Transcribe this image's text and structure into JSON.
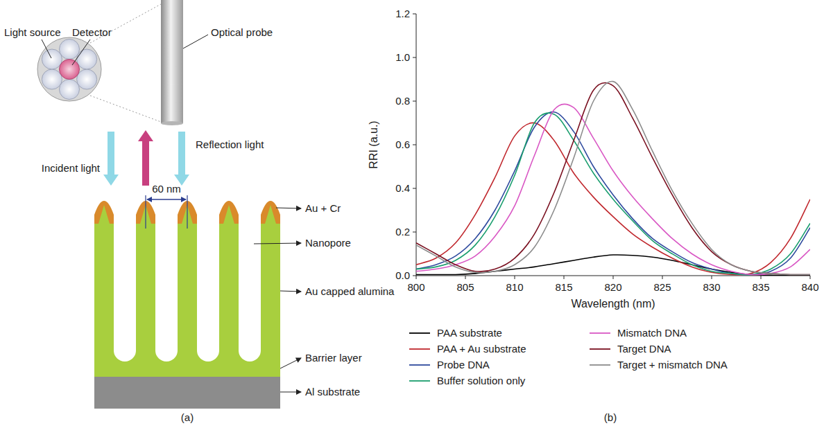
{
  "panel_labels": [
    "(a)",
    "(b)"
  ],
  "diagram": {
    "light_source": "Light source",
    "detector": "Detector",
    "optical_probe": "Optical probe",
    "reflection_light": "Reflection light",
    "incident_light": "Incident light",
    "pore_spacing": "60 nm",
    "au_cr": "Au + Cr",
    "nanopore": "Nanopore",
    "au_capped_alumina": "Au capped alumina",
    "barrier_layer": "Barrier layer",
    "al_substrate": "Al substrate"
  },
  "chart_data": {
    "type": "line",
    "xlabel": "Wavelength (nm)",
    "ylabel": "RRI (a.u.)",
    "x": [
      800,
      802,
      804,
      806,
      808,
      810,
      812,
      814,
      816,
      818,
      820,
      822,
      824,
      826,
      828,
      830,
      832,
      834,
      836,
      838,
      840
    ],
    "series": [
      {
        "name": "PAA substrate",
        "color": "#000000",
        "values": [
          0.005,
          0.005,
          0.005,
          0.01,
          0.02,
          0.03,
          0.04,
          0.055,
          0.07,
          0.085,
          0.095,
          0.093,
          0.085,
          0.07,
          0.05,
          0.03,
          0.015,
          0.005,
          0.002,
          0.002,
          0.002
        ]
      },
      {
        "name": "PAA + Au substrate",
        "color": "#c0272d",
        "values": [
          0.05,
          0.08,
          0.15,
          0.28,
          0.45,
          0.64,
          0.7,
          0.62,
          0.47,
          0.36,
          0.27,
          0.19,
          0.13,
          0.08,
          0.04,
          0.015,
          0.005,
          0.01,
          0.06,
          0.17,
          0.35
        ]
      },
      {
        "name": "Probe DNA",
        "color": "#2e4a9e",
        "values": [
          0.03,
          0.05,
          0.09,
          0.17,
          0.3,
          0.48,
          0.68,
          0.75,
          0.66,
          0.5,
          0.37,
          0.26,
          0.17,
          0.11,
          0.06,
          0.03,
          0.01,
          0.005,
          0.02,
          0.08,
          0.22
        ]
      },
      {
        "name": "Buffer solution only",
        "color": "#1a9e6e",
        "values": [
          0.03,
          0.04,
          0.07,
          0.14,
          0.27,
          0.46,
          0.7,
          0.74,
          0.62,
          0.47,
          0.35,
          0.25,
          0.16,
          0.1,
          0.05,
          0.02,
          0.01,
          0.005,
          0.03,
          0.1,
          0.24
        ]
      },
      {
        "name": "Mismatch DNA",
        "color": "#d957c4",
        "values": [
          0.02,
          0.03,
          0.05,
          0.09,
          0.18,
          0.32,
          0.55,
          0.76,
          0.77,
          0.63,
          0.48,
          0.36,
          0.26,
          0.17,
          0.1,
          0.05,
          0.02,
          0.005,
          0.01,
          0.04,
          0.12
        ]
      },
      {
        "name": "Target DNA",
        "color": "#7a1020",
        "values": [
          0.15,
          0.1,
          0.05,
          0.02,
          0.03,
          0.08,
          0.19,
          0.38,
          0.62,
          0.85,
          0.87,
          0.72,
          0.54,
          0.37,
          0.22,
          0.11,
          0.05,
          0.02,
          0.01,
          0.005,
          0.005
        ]
      },
      {
        "name": "Target + mismatch DNA",
        "color": "#8c8c8c",
        "values": [
          0.14,
          0.09,
          0.04,
          0.015,
          0.02,
          0.05,
          0.13,
          0.3,
          0.54,
          0.8,
          0.89,
          0.76,
          0.57,
          0.39,
          0.24,
          0.12,
          0.05,
          0.02,
          0.01,
          0.005,
          0.005
        ]
      }
    ],
    "xlim": [
      800,
      840
    ],
    "xticks": [
      800,
      805,
      810,
      815,
      820,
      825,
      830,
      835,
      840
    ],
    "ylim": [
      0,
      1.2
    ],
    "yticks": [
      {
        "value": 0,
        "label": "0.0"
      },
      0.2,
      0.4,
      0.6,
      0.8,
      {
        "value": 1,
        "label": "1.0"
      },
      1.2
    ],
    "legend": "bottom",
    "grid": false
  }
}
